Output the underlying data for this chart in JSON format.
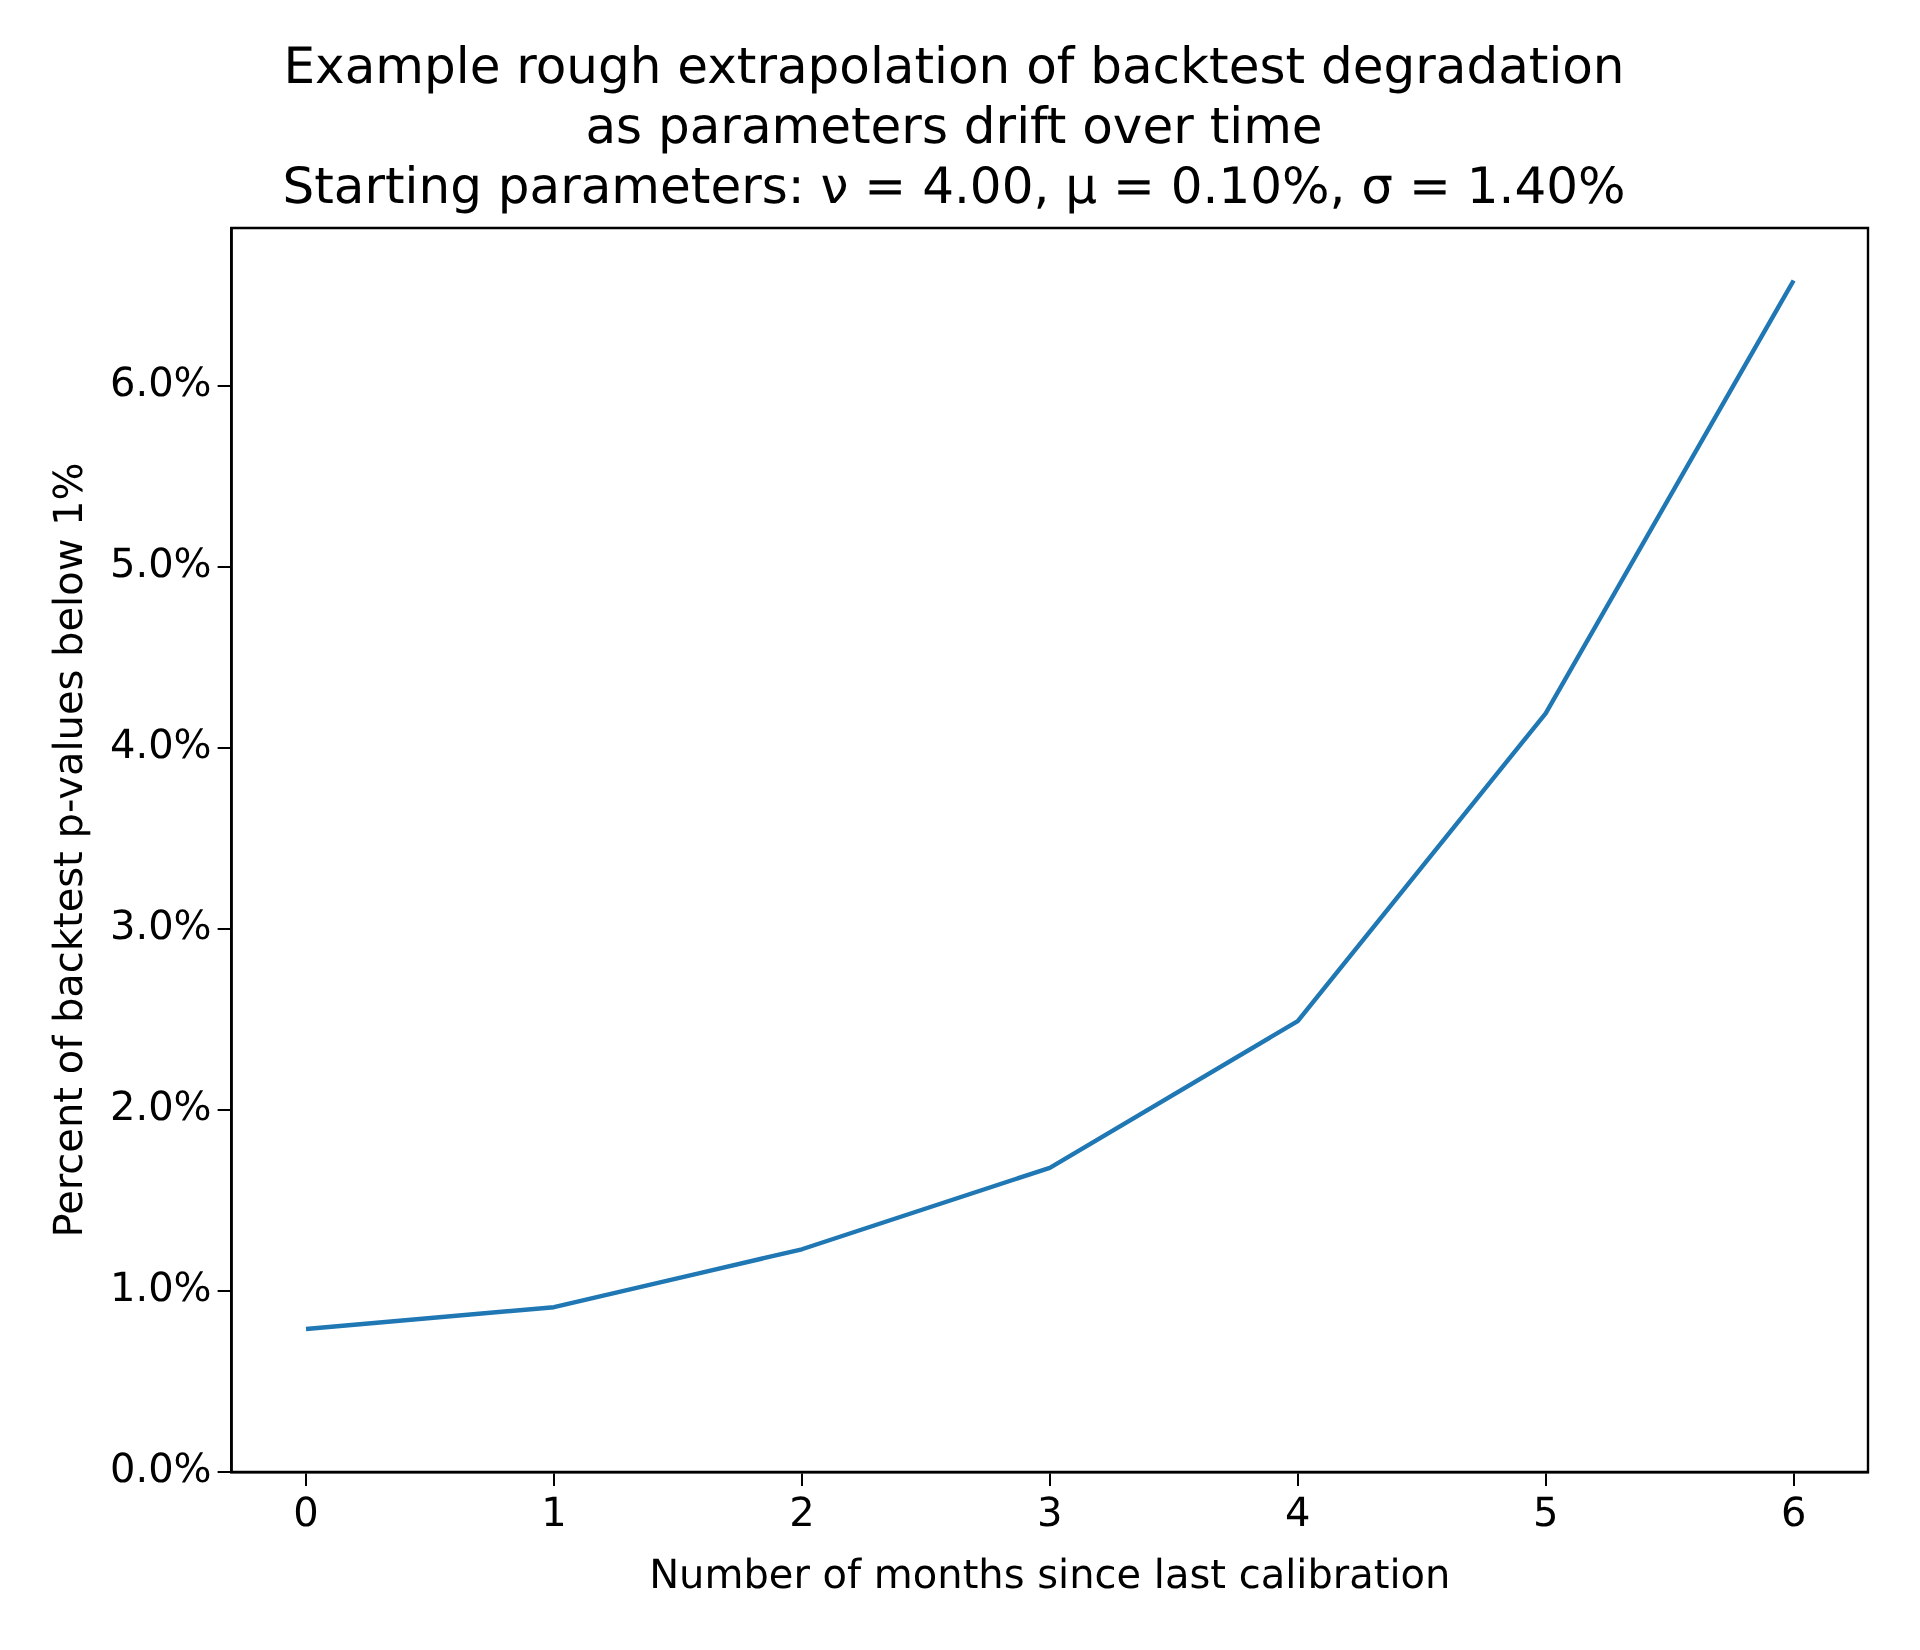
{
  "chart_data": {
    "type": "line",
    "title": "Example rough extrapolation of backtest degradation\nas parameters drift over time\nStarting parameters: ν = 4.00, μ = 0.10%, σ = 1.40%",
    "xlabel": "Number of months since last calibration",
    "ylabel": "Percent of backtest p-values below 1%",
    "x": [
      0,
      1,
      2,
      3,
      4,
      5,
      6
    ],
    "series": [
      {
        "color": "#1f77b4",
        "values": [
          0.79,
          0.91,
          1.23,
          1.68,
          2.49,
          4.19,
          6.58
        ]
      }
    ],
    "xlim": [
      -0.3,
      6.3
    ],
    "xticks": [
      0,
      1,
      2,
      3,
      4,
      5,
      6
    ],
    "ylim": [
      0,
      6.87
    ],
    "yticks": [
      {
        "value": 0,
        "label": "0.0%"
      },
      {
        "value": 1,
        "label": "1.0%"
      },
      {
        "value": 2,
        "label": "2.0%"
      },
      {
        "value": 3,
        "label": "3.0%"
      },
      {
        "value": 4,
        "label": "4.0%"
      },
      {
        "value": 5,
        "label": "5.0%"
      },
      {
        "value": 6,
        "label": "6.0%"
      }
    ],
    "grid": false,
    "legend": false,
    "marker": "none",
    "line_style": "solid"
  }
}
